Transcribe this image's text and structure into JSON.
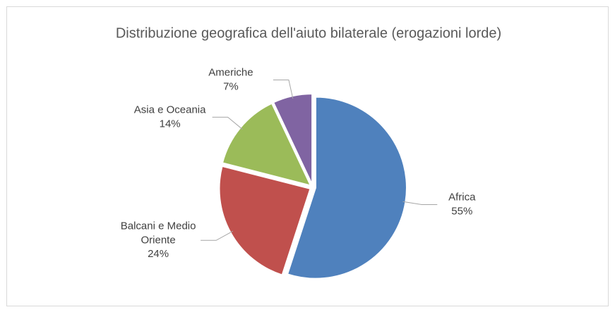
{
  "chart_data": {
    "type": "pie",
    "title": "Distribuzione geografica dell'aiuto bilaterale (erogazioni lorde)",
    "categories": [
      "Africa",
      "Balcani e Medio Oriente",
      "Asia e Oceania",
      "Americhe"
    ],
    "values": [
      55,
      24,
      14,
      7
    ],
    "value_labels": [
      "55%",
      "24%",
      "14%",
      "7%"
    ],
    "colors": [
      "#4f81bd",
      "#c0504d",
      "#9bbb59",
      "#8064a2"
    ]
  }
}
